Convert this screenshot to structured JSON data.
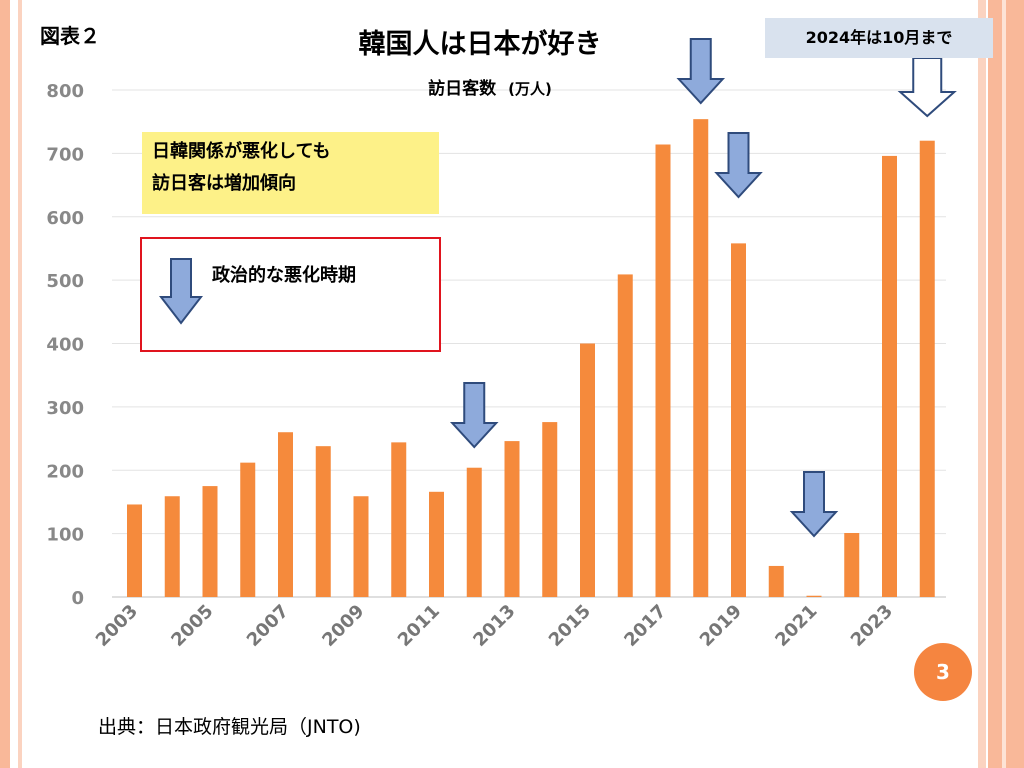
{
  "figure_label": "図表２",
  "note": "2024年は10月まで",
  "callout": [
    "日韓関係が悪化しても",
    "訪日客は増加傾向"
  ],
  "legend": {
    "label": "政治的な悪化時期",
    "icon": "down-arrow-icon"
  },
  "source": "出典：日本政府観光局（JNTO)",
  "page_number": "3",
  "colors": {
    "bar": "#f58a3c",
    "arrow_fill": "#8eaadb",
    "arrow_stroke": "#2f4b7c",
    "legend_border": "#e0141e",
    "callout_bg": "#fdf188",
    "badge": "#f58540"
  },
  "chart_data": {
    "type": "bar",
    "title": "韓国人は日本が好き",
    "subtitle": "訪日客数",
    "unit": "(万人)",
    "categories": [
      "2003",
      "2004",
      "2005",
      "2006",
      "2007",
      "2008",
      "2009",
      "2010",
      "2011",
      "2012",
      "2013",
      "2014",
      "2015",
      "2016",
      "2017",
      "2018",
      "2019",
      "2020",
      "2021",
      "2022",
      "2023",
      "2024"
    ],
    "values": [
      146,
      159,
      175,
      212,
      260,
      238,
      159,
      244,
      166,
      204,
      246,
      276,
      400,
      509,
      714,
      754,
      558,
      49,
      2,
      101,
      696,
      720
    ],
    "x_tick_labels": [
      "2003",
      "2005",
      "2007",
      "2009",
      "2011",
      "2013",
      "2015",
      "2017",
      "2019",
      "2021",
      "2023"
    ],
    "y_ticks": [
      0,
      100,
      200,
      300,
      400,
      500,
      600,
      700,
      800
    ],
    "ylim": [
      0,
      800
    ],
    "grid": true,
    "annotations": [
      {
        "type": "down-arrow",
        "category": "2012",
        "meaning": "政治的な悪化時期"
      },
      {
        "type": "down-arrow",
        "category": "2018",
        "meaning": "政治的な悪化時期"
      },
      {
        "type": "down-arrow",
        "category": "2019",
        "meaning": "政治的な悪化時期"
      },
      {
        "type": "down-arrow",
        "category": "2021",
        "meaning": "政治的な悪化時期"
      },
      {
        "type": "down-arrow",
        "category": "2024",
        "meaning": "2024年は10月まで"
      }
    ]
  }
}
